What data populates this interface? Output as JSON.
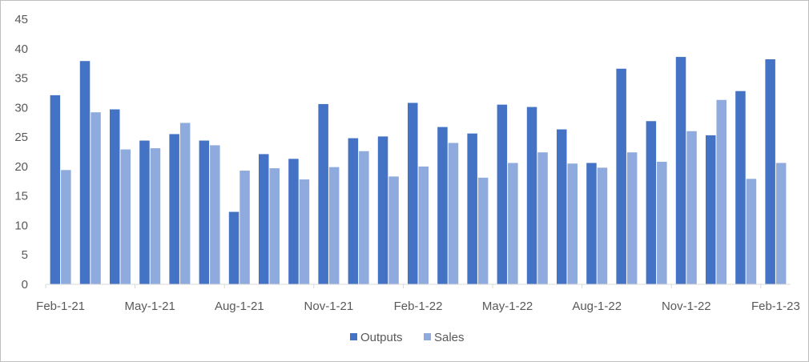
{
  "chart_data": {
    "type": "bar",
    "ylim": [
      0,
      45
    ],
    "y_ticks": [
      "0",
      "5",
      "10",
      "15",
      "20",
      "25",
      "30",
      "35",
      "40",
      "45"
    ],
    "x_tick_labels": [
      "Feb-1-21",
      "May-1-21",
      "Aug-1-21",
      "Nov-1-21",
      "Feb-1-22",
      "May-1-22",
      "Aug-1-22",
      "Nov-1-22",
      "Feb-1-23"
    ],
    "categories": [
      "Feb-1-21",
      "Mar-1-21",
      "Apr-1-21",
      "May-1-21",
      "Jun-1-21",
      "Jul-1-21",
      "Aug-1-21",
      "Sep-1-21",
      "Oct-1-21",
      "Nov-1-21",
      "Dec-1-21",
      "Jan-1-22",
      "Feb-1-22",
      "Mar-1-22",
      "Apr-1-22",
      "May-1-22",
      "Jun-1-22",
      "Jul-1-22",
      "Aug-1-22",
      "Sep-1-22",
      "Oct-1-22",
      "Nov-1-22",
      "Dec-1-22",
      "Jan-1-23",
      "Feb-1-23"
    ],
    "series": [
      {
        "name": "Outputs",
        "color": "#4472c4",
        "values": [
          32.1,
          37.9,
          29.7,
          24.4,
          25.5,
          24.4,
          12.3,
          22.1,
          21.3,
          30.6,
          24.8,
          25.1,
          30.8,
          26.7,
          25.6,
          30.5,
          30.1,
          26.3,
          20.6,
          36.6,
          27.7,
          38.6,
          25.3,
          32.8,
          38.2
        ]
      },
      {
        "name": "Sales",
        "color": "#8faadc",
        "values": [
          19.4,
          29.2,
          22.9,
          23.1,
          27.4,
          23.6,
          19.3,
          19.7,
          17.8,
          19.9,
          22.6,
          18.3,
          20.0,
          24.0,
          18.1,
          20.6,
          22.4,
          20.5,
          19.8,
          22.4,
          20.8,
          26.0,
          31.3,
          17.9,
          20.6
        ]
      }
    ],
    "grid": false,
    "legend_position": "bottom"
  }
}
